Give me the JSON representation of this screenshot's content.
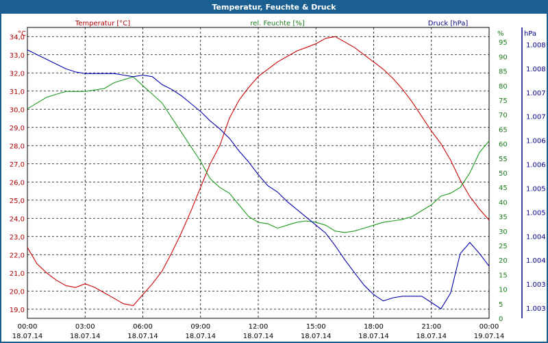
{
  "window": {
    "title": "Temperatur, Feuchte & Druck"
  },
  "chart_data": {
    "type": "line",
    "title": "Temperatur, Feuchte & Druck",
    "grid": true,
    "x_ticks": [
      {
        "time": "00:00",
        "date": "18.07.14"
      },
      {
        "time": "03:00",
        "date": "18.07.14"
      },
      {
        "time": "06:00",
        "date": "18.07.14"
      },
      {
        "time": "09:00",
        "date": "18.07.14"
      },
      {
        "time": "12:00",
        "date": "18.07.14"
      },
      {
        "time": "15:00",
        "date": "18.07.14"
      },
      {
        "time": "18:00",
        "date": "18.07.14"
      },
      {
        "time": "21:00",
        "date": "18.07.14"
      },
      {
        "time": "00:00",
        "date": "19.07.14"
      }
    ],
    "axes": {
      "temp": {
        "unit": "°C",
        "range": [
          18.5,
          34.5
        ],
        "ticks": [
          "19,0",
          "20,0",
          "21,0",
          "22,0",
          "23,0",
          "24,0",
          "25,0",
          "26,0",
          "27,0",
          "28,0",
          "29,0",
          "30,0",
          "31,0",
          "32,0",
          "33,0",
          "34,0"
        ],
        "color": "#b00000"
      },
      "hum": {
        "unit": "%",
        "range": [
          0,
          100
        ],
        "ticks": [
          "0",
          "5",
          "10",
          "15",
          "20",
          "25",
          "30",
          "35",
          "40",
          "45",
          "50",
          "55",
          "60",
          "65",
          "70",
          "75",
          "80",
          "85",
          "90",
          "95"
        ],
        "color": "#1a7a1a"
      },
      "press": {
        "unit": "hPa",
        "ticks": [
          "1.003",
          "1.003",
          "1.004",
          "1.004",
          "1.005",
          "1.005",
          "1.006",
          "1.006",
          "1.007",
          "1.007",
          "1.008",
          "1.008"
        ],
        "color": "#00008b"
      }
    },
    "series": [
      {
        "name": "Temperatur [°C]",
        "axis": "temp",
        "color": "#cc0000",
        "x": [
          0,
          0.5,
          1,
          1.5,
          2,
          2.5,
          3,
          3.5,
          4,
          4.5,
          5,
          5.5,
          6,
          6.5,
          7,
          7.5,
          8,
          8.5,
          9,
          9.5,
          10,
          10.5,
          11,
          11.5,
          12,
          12.5,
          13,
          13.5,
          14,
          14.5,
          15,
          15.5,
          16,
          16.5,
          17,
          17.5,
          18,
          18.5,
          19,
          19.5,
          20,
          20.5,
          21,
          21.5,
          22,
          22.5,
          23,
          23.5,
          24
        ],
        "y": [
          22.4,
          21.5,
          21.0,
          20.6,
          20.3,
          20.2,
          20.4,
          20.2,
          19.9,
          19.6,
          19.3,
          19.2,
          19.8,
          20.4,
          21.1,
          22.1,
          23.2,
          24.4,
          25.7,
          27.0,
          28.0,
          29.5,
          30.5,
          31.2,
          31.8,
          32.2,
          32.6,
          32.9,
          33.2,
          33.4,
          33.6,
          33.9,
          34.0,
          33.7,
          33.4,
          33.0,
          32.6,
          32.2,
          31.7,
          31.1,
          30.4,
          29.6,
          28.8,
          28.1,
          27.2,
          26.1,
          25.2,
          24.5,
          23.9
        ]
      },
      {
        "name": "rel. Feuchte [%]",
        "axis": "hum",
        "color": "#1a9a1a",
        "x": [
          0,
          0.5,
          1,
          1.5,
          2,
          2.5,
          3,
          3.5,
          4,
          4.5,
          5,
          5.5,
          6,
          6.5,
          7,
          7.5,
          8,
          8.5,
          9,
          9.5,
          10,
          10.5,
          11,
          11.5,
          12,
          12.5,
          13,
          13.5,
          14,
          14.5,
          15,
          15.5,
          16,
          16.5,
          17,
          17.5,
          18,
          18.5,
          19,
          19.5,
          20,
          20.5,
          21,
          21.5,
          22,
          22.5,
          23,
          23.5,
          24
        ],
        "y": [
          72,
          74,
          76,
          77,
          78,
          78,
          78,
          78.5,
          79,
          81,
          82,
          83,
          80,
          77,
          74,
          69,
          64,
          59,
          54,
          48,
          45,
          43,
          39,
          35,
          33,
          32.5,
          31,
          32,
          33,
          33.5,
          33,
          32,
          30,
          29.5,
          30,
          31,
          32,
          33,
          33.5,
          34,
          35,
          37,
          39,
          42,
          43,
          45,
          50,
          57,
          61
        ]
      },
      {
        "name": "Druck [hPa]",
        "axis": "press",
        "color": "#0000b0",
        "x": [
          0,
          0.5,
          1,
          1.5,
          2,
          2.5,
          3,
          3.5,
          4,
          4.5,
          5,
          5.5,
          6,
          6.5,
          7,
          7.5,
          8,
          8.5,
          9,
          9.5,
          10,
          10.5,
          11,
          11.5,
          12,
          12.5,
          13,
          13.5,
          14,
          14.5,
          15,
          15.5,
          16,
          16.5,
          17,
          17.5,
          18,
          18.5,
          19,
          19.5,
          20,
          20.5,
          21,
          21.5,
          22,
          22.5,
          23,
          23.5,
          24
        ],
        "y": [
          1.0079,
          1.00784,
          1.00778,
          1.00772,
          1.00766,
          1.00762,
          1.0076,
          1.0076,
          1.0076,
          1.0076,
          1.00758,
          1.00756,
          1.00758,
          1.00756,
          1.00746,
          1.0074,
          1.00732,
          1.00722,
          1.00712,
          1.007,
          1.0069,
          1.00678,
          1.00662,
          1.00648,
          1.00632,
          1.00618,
          1.0061,
          1.00598,
          1.00588,
          1.00578,
          1.00568,
          1.00558,
          1.00542,
          1.00524,
          1.00508,
          1.00492,
          1.0048,
          1.00472,
          1.00476,
          1.00478,
          1.00478,
          1.00478,
          1.0047,
          1.00462,
          1.00482,
          1.00532,
          1.00546,
          1.00532,
          1.00516
        ]
      }
    ]
  }
}
